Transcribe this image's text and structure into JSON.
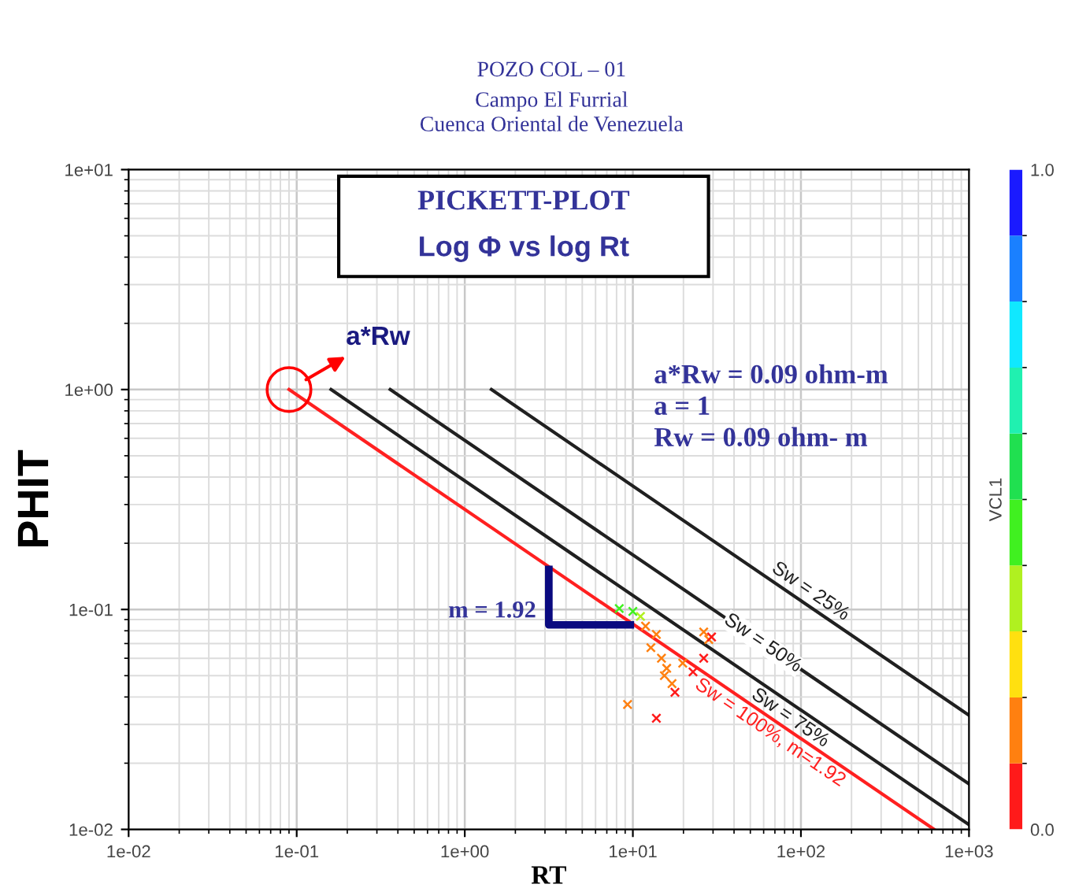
{
  "chart_data": {
    "type": "line",
    "title": "POZO COL – 01",
    "subtitle": "Campo El Furrial\nCuenca Oriental de Venezuela",
    "xlabel": "RT",
    "ylabel": "PHIT",
    "clabel": "VCL1",
    "log": "xy",
    "xlim": [
      0.01,
      1000
    ],
    "ylim": [
      0.01,
      10
    ],
    "xticks": [
      {
        "value": 0.01,
        "label": "1e-02"
      },
      {
        "value": 0.1,
        "label": "1e-01"
      },
      {
        "value": 1,
        "label": "1e+00"
      },
      {
        "value": 10,
        "label": "1e+01"
      },
      {
        "value": 100,
        "label": "1e+02"
      },
      {
        "value": 1000,
        "label": "1e+03"
      }
    ],
    "yticks": [
      {
        "value": 0.01,
        "label": "1e-02"
      },
      {
        "value": 0.1,
        "label": "1e-01"
      },
      {
        "value": 1,
        "label": "1e+00"
      },
      {
        "value": 10,
        "label": "1e+01"
      }
    ],
    "clim": [
      0,
      1
    ],
    "cticks": [
      {
        "value": 0,
        "label": "0.0"
      },
      {
        "value": 1,
        "label": "1.0"
      }
    ],
    "grid": true,
    "legend": false,
    "series": [
      {
        "name": "Sw = 100%, m=1.92",
        "type": "line",
        "color": "#ff2020",
        "x": [
          0.09,
          620
        ],
        "values": [
          1,
          0.01
        ]
      },
      {
        "name": "Sw = 75%",
        "type": "line",
        "color": "#202020",
        "x": [
          0.16,
          1000
        ],
        "values": [
          1,
          0.0105
        ]
      },
      {
        "name": "Sw = 50%",
        "type": "line",
        "color": "#202020",
        "x": [
          0.36,
          1000
        ],
        "values": [
          1,
          0.0161
        ]
      },
      {
        "name": "Sw = 25%",
        "type": "line",
        "color": "#202020",
        "x": [
          1.44,
          1000
        ],
        "values": [
          1,
          0.033
        ]
      },
      {
        "type": "scatter",
        "marker": "cross",
        "x": [
          8.3,
          10.0,
          11.1,
          11.9,
          13.8,
          12.8,
          14.8,
          15.9,
          15.4,
          17.1,
          17.8,
          9.3,
          13.8,
          19.8,
          22.8,
          26.4,
          28.3,
          29.4,
          26.4
        ],
        "values": [
          0.101,
          0.098,
          0.093,
          0.084,
          0.077,
          0.067,
          0.06,
          0.054,
          0.05,
          0.046,
          0.042,
          0.037,
          0.032,
          0.057,
          0.052,
          0.079,
          0.073,
          0.075,
          0.06
        ],
        "colors": [
          "#40f020",
          "#40f020",
          "#b0f020",
          "#ff8010",
          "#ff8010",
          "#ff8010",
          "#ff8010",
          "#ff8010",
          "#ff8010",
          "#ff8010",
          "#ff1a1a",
          "#ff8010",
          "#ff1a1a",
          "#ff8010",
          "#ff1a1a",
          "#ff8010",
          "#ff8010",
          "#ff1a1a",
          "#ff1a1a"
        ]
      }
    ],
    "annotations": [
      "PICKETT-PLOT",
      "Log Φ vs log Rt",
      {
        "text": "a*Rw",
        "x": 0.09,
        "y": 1
      },
      "a*Rw = 0.09 ohm-m\na = 1\nRw = 0.09 ohm- m",
      "m = 1.92"
    ]
  }
}
